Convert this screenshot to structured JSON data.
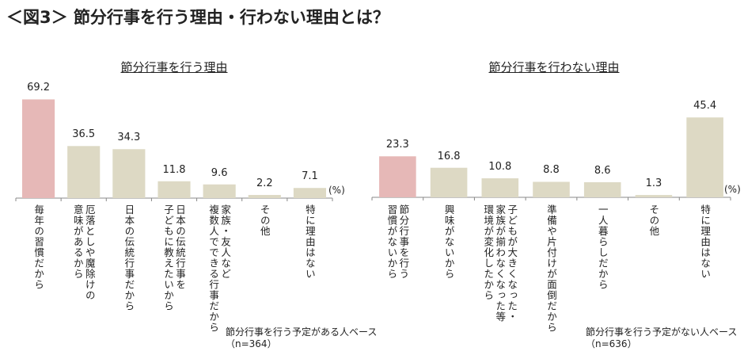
{
  "title": "＜図3＞ 節分行事を行う理由・行わない理由とは？",
  "chart_data": [
    {
      "type": "bar",
      "title": "節分行事を行う理由",
      "unit": "(%)",
      "categories": [
        [
          "毎年の習慣だから"
        ],
        [
          "厄落としや魔除けの",
          "意味があるから"
        ],
        [
          "日本の伝統行事だから"
        ],
        [
          "日本の伝統行事を",
          "子どもに教えたいから"
        ],
        [
          "家族・友人など",
          "複数人でできる行事だから"
        ],
        [
          "その他"
        ],
        [
          "特に理由はない"
        ]
      ],
      "values": [
        69.2,
        36.5,
        34.3,
        11.8,
        9.6,
        2.2,
        7.1
      ],
      "highlight": [
        0
      ],
      "note": [
        "節分行事を行う予定がある人ベース",
        "（n=364）"
      ]
    },
    {
      "type": "bar",
      "title": "節分行事を行わない理由",
      "unit": "(%)",
      "categories": [
        [
          "節分行事を行う",
          "習慣がないから"
        ],
        [
          "興味がないから"
        ],
        [
          "子どもが大きくなった・",
          "家族が揃わなくなった等",
          "環境が変化したから"
        ],
        [
          "準備や片付けが面倒だから"
        ],
        [
          "一人暮らしだから"
        ],
        [
          "その他"
        ],
        [
          "特に理由はない"
        ]
      ],
      "values": [
        23.3,
        16.8,
        10.8,
        8.8,
        8.6,
        1.3,
        45.4
      ],
      "highlight": [
        0
      ],
      "note": [
        "節分行事を行う予定がない人ベース",
        "（n=636）"
      ]
    }
  ],
  "colors": {
    "highlight": "#e6b8b7",
    "bar": "#ddd9c4",
    "axis": "#888888"
  }
}
